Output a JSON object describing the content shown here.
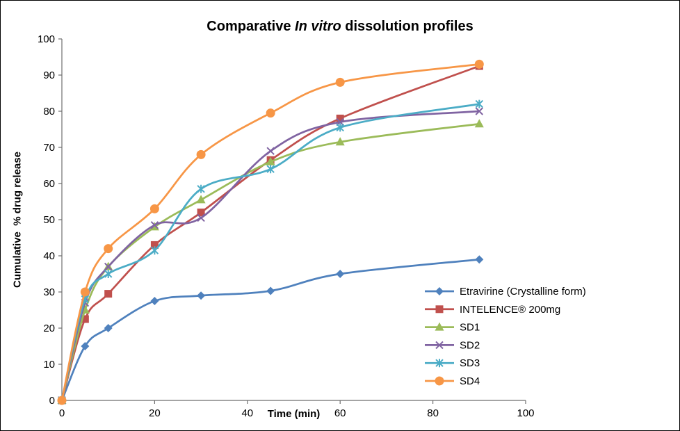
{
  "chart_data": {
    "type": "line",
    "title": "Comparative In vitro dissolution profiles",
    "title_prefix": "Comparative ",
    "title_italic": "In vitro",
    "title_suffix": " dissolution profiles",
    "xlabel": "Time (min)",
    "ylabel": "Cumulative  % drug release",
    "xlim": [
      0,
      100
    ],
    "ylim": [
      0,
      100
    ],
    "xticks": [
      0,
      20,
      40,
      60,
      80,
      100
    ],
    "yticks": [
      0,
      10,
      20,
      30,
      40,
      50,
      60,
      70,
      80,
      90,
      100
    ],
    "grid": false,
    "smooth_lines": true,
    "axis_color": "#6e6e6e",
    "text_color": "#000000",
    "legend_position": "inside-lower-right",
    "x": [
      0,
      5,
      10,
      20,
      30,
      45,
      60,
      90
    ],
    "series": [
      {
        "name": "Etravirine (Crystalline form)",
        "marker": "diamond",
        "color": "#4F81BD",
        "values": [
          0,
          15,
          20,
          27.5,
          29,
          30.3,
          35,
          39
        ]
      },
      {
        "name": "INTELENCE® 200mg",
        "marker": "square",
        "color": "#C0504D",
        "values": [
          0,
          22.5,
          29.5,
          43,
          52,
          66.5,
          78,
          92.5
        ]
      },
      {
        "name": "SD1",
        "marker": "triangle",
        "color": "#9BBB59",
        "values": [
          0,
          25,
          37,
          48,
          55.5,
          66,
          71.5,
          76.5
        ]
      },
      {
        "name": "SD2",
        "marker": "x",
        "color": "#8064A2",
        "values": [
          0,
          27,
          37,
          48.5,
          50.5,
          69,
          77,
          80
        ]
      },
      {
        "name": "SD3",
        "marker": "asterisk",
        "color": "#4BACC6",
        "values": [
          0,
          28,
          35,
          41.5,
          58.5,
          64,
          75.5,
          82
        ]
      },
      {
        "name": "SD4",
        "marker": "circle",
        "color": "#F79646",
        "values": [
          0,
          30,
          42,
          53,
          68,
          79.5,
          88,
          93
        ]
      }
    ]
  }
}
